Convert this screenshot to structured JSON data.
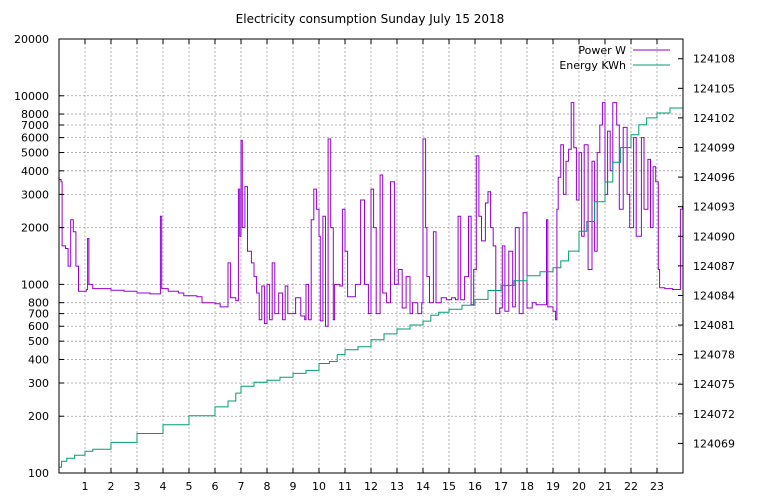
{
  "chart_data": {
    "type": "line",
    "title": "Electricity consumption Sunday July 15 2018",
    "xlabel": "",
    "ylabel": "",
    "y2label": "",
    "grid": true,
    "legend_position": "top-right",
    "x_range": [
      0,
      24
    ],
    "x_ticks": [
      1,
      2,
      3,
      4,
      5,
      6,
      7,
      8,
      9,
      10,
      11,
      12,
      13,
      14,
      15,
      16,
      17,
      18,
      19,
      20,
      21,
      22,
      23
    ],
    "y_scale": "log",
    "ylim": [
      100,
      20000
    ],
    "y_ticks": [
      100,
      200,
      300,
      400,
      500,
      600,
      700,
      800,
      1000,
      2000,
      3000,
      4000,
      5000,
      6000,
      7000,
      8000,
      10000,
      20000
    ],
    "y2lim": [
      124066,
      124110
    ],
    "y2_ticks": [
      124069,
      124072,
      124075,
      124078,
      124081,
      124084,
      124087,
      124090,
      124093,
      124096,
      124099,
      124102,
      124105,
      124108
    ],
    "series": [
      {
        "name": "Power W",
        "axis": "left",
        "color": "#9400d3",
        "points": [
          [
            0.0,
            3600
          ],
          [
            0.08,
            3500
          ],
          [
            0.12,
            1600
          ],
          [
            0.25,
            1550
          ],
          [
            0.35,
            1250
          ],
          [
            0.45,
            2200
          ],
          [
            0.55,
            1900
          ],
          [
            0.65,
            1250
          ],
          [
            0.75,
            920
          ],
          [
            1.05,
            940
          ],
          [
            1.1,
            1750
          ],
          [
            1.15,
            1000
          ],
          [
            1.3,
            950
          ],
          [
            2.0,
            930
          ],
          [
            2.5,
            920
          ],
          [
            3.0,
            900
          ],
          [
            3.5,
            890
          ],
          [
            3.85,
            890
          ],
          [
            3.9,
            2300
          ],
          [
            3.95,
            950
          ],
          [
            4.2,
            920
          ],
          [
            4.6,
            900
          ],
          [
            4.8,
            870
          ],
          [
            5.3,
            860
          ],
          [
            5.5,
            800
          ],
          [
            6.0,
            790
          ],
          [
            6.2,
            760
          ],
          [
            6.45,
            760
          ],
          [
            6.5,
            1300
          ],
          [
            6.6,
            850
          ],
          [
            6.8,
            820
          ],
          [
            6.9,
            3200
          ],
          [
            6.95,
            1800
          ],
          [
            7.0,
            5800
          ],
          [
            7.05,
            2000
          ],
          [
            7.15,
            3300
          ],
          [
            7.25,
            1500
          ],
          [
            7.4,
            1300
          ],
          [
            7.5,
            1100
          ],
          [
            7.6,
            900
          ],
          [
            7.7,
            650
          ],
          [
            7.8,
            980
          ],
          [
            7.9,
            620
          ],
          [
            8.0,
            1000
          ],
          [
            8.1,
            650
          ],
          [
            8.2,
            1300
          ],
          [
            8.3,
            700
          ],
          [
            8.45,
            900
          ],
          [
            8.6,
            650
          ],
          [
            8.7,
            980
          ],
          [
            8.8,
            700
          ],
          [
            9.0,
            700
          ],
          [
            9.1,
            850
          ],
          [
            9.3,
            680
          ],
          [
            9.45,
            650
          ],
          [
            9.5,
            1000
          ],
          [
            9.6,
            650
          ],
          [
            9.7,
            2200
          ],
          [
            9.8,
            3200
          ],
          [
            9.9,
            2500
          ],
          [
            10.0,
            1800
          ],
          [
            10.05,
            640
          ],
          [
            10.15,
            2300
          ],
          [
            10.25,
            600
          ],
          [
            10.35,
            5900
          ],
          [
            10.45,
            2000
          ],
          [
            10.55,
            650
          ],
          [
            10.6,
            1000
          ],
          [
            10.8,
            980
          ],
          [
            10.9,
            2500
          ],
          [
            11.0,
            1500
          ],
          [
            11.1,
            860
          ],
          [
            11.3,
            860
          ],
          [
            11.4,
            1000
          ],
          [
            11.6,
            2800
          ],
          [
            11.75,
            1000
          ],
          [
            11.9,
            700
          ],
          [
            12.0,
            3200
          ],
          [
            12.1,
            2000
          ],
          [
            12.2,
            700
          ],
          [
            12.35,
            3800
          ],
          [
            12.45,
            900
          ],
          [
            12.6,
            800
          ],
          [
            12.75,
            3500
          ],
          [
            12.9,
            1000
          ],
          [
            13.05,
            1200
          ],
          [
            13.2,
            750
          ],
          [
            13.35,
            1100
          ],
          [
            13.5,
            700
          ],
          [
            13.6,
            800
          ],
          [
            13.8,
            700
          ],
          [
            13.95,
            800
          ],
          [
            14.0,
            5900
          ],
          [
            14.1,
            2000
          ],
          [
            14.15,
            1100
          ],
          [
            14.25,
            800
          ],
          [
            14.4,
            1900
          ],
          [
            14.5,
            800
          ],
          [
            14.7,
            850
          ],
          [
            14.9,
            830
          ],
          [
            15.1,
            850
          ],
          [
            15.25,
            830
          ],
          [
            15.35,
            2300
          ],
          [
            15.45,
            830
          ],
          [
            15.6,
            1100
          ],
          [
            15.75,
            2300
          ],
          [
            15.85,
            780
          ],
          [
            15.95,
            1200
          ],
          [
            16.05,
            4800
          ],
          [
            16.15,
            2300
          ],
          [
            16.25,
            1700
          ],
          [
            16.4,
            2700
          ],
          [
            16.5,
            3100
          ],
          [
            16.6,
            2000
          ],
          [
            16.7,
            1600
          ],
          [
            16.8,
            700
          ],
          [
            16.95,
            750
          ],
          [
            17.05,
            1600
          ],
          [
            17.15,
            720
          ],
          [
            17.3,
            1500
          ],
          [
            17.45,
            760
          ],
          [
            17.55,
            2000
          ],
          [
            17.7,
            700
          ],
          [
            17.85,
            2400
          ],
          [
            18.0,
            750
          ],
          [
            18.2,
            800
          ],
          [
            18.35,
            780
          ],
          [
            18.6,
            780
          ],
          [
            18.75,
            2200
          ],
          [
            18.8,
            760
          ],
          [
            19.0,
            720
          ],
          [
            19.1,
            650
          ],
          [
            19.15,
            2500
          ],
          [
            19.2,
            3700
          ],
          [
            19.3,
            5500
          ],
          [
            19.4,
            3000
          ],
          [
            19.5,
            4500
          ],
          [
            19.6,
            5200
          ],
          [
            19.7,
            9200
          ],
          [
            19.8,
            5300
          ],
          [
            19.9,
            2800
          ],
          [
            20.0,
            5000
          ],
          [
            20.1,
            1800
          ],
          [
            20.2,
            5500
          ],
          [
            20.35,
            1200
          ],
          [
            20.5,
            4500
          ],
          [
            20.6,
            1500
          ],
          [
            20.7,
            5000
          ],
          [
            20.8,
            7000
          ],
          [
            20.9,
            9200
          ],
          [
            21.0,
            3000
          ],
          [
            21.1,
            6500
          ],
          [
            21.2,
            4000
          ],
          [
            21.3,
            9200
          ],
          [
            21.45,
            7000
          ],
          [
            21.55,
            2500
          ],
          [
            21.7,
            6800
          ],
          [
            21.85,
            3000
          ],
          [
            21.95,
            2000
          ],
          [
            22.1,
            6000
          ],
          [
            22.2,
            1800
          ],
          [
            22.4,
            6000
          ],
          [
            22.5,
            2500
          ],
          [
            22.65,
            4600
          ],
          [
            22.75,
            2000
          ],
          [
            22.85,
            4200
          ],
          [
            22.95,
            3500
          ],
          [
            23.05,
            1200
          ],
          [
            23.1,
            960
          ],
          [
            23.3,
            950
          ],
          [
            23.6,
            940
          ],
          [
            23.8,
            940
          ],
          [
            23.9,
            2500
          ],
          [
            23.98,
            2600
          ]
        ]
      },
      {
        "name": "Energy KWh",
        "axis": "right",
        "color": "#009e73",
        "points": [
          [
            0.0,
            124066.6
          ],
          [
            0.1,
            124067.2
          ],
          [
            0.3,
            124067.5
          ],
          [
            0.6,
            124067.8
          ],
          [
            1.0,
            124068.2
          ],
          [
            1.3,
            124068.4
          ],
          [
            2.0,
            124069.1
          ],
          [
            3.0,
            124070.0
          ],
          [
            4.0,
            124070.9
          ],
          [
            5.0,
            124071.8
          ],
          [
            6.0,
            124072.7
          ],
          [
            6.5,
            124073.3
          ],
          [
            6.8,
            124074.1
          ],
          [
            7.0,
            124074.8
          ],
          [
            7.5,
            124075.2
          ],
          [
            8.0,
            124075.4
          ],
          [
            8.5,
            124075.7
          ],
          [
            9.0,
            124076.1
          ],
          [
            9.5,
            124076.4
          ],
          [
            10.0,
            124077.1
          ],
          [
            10.4,
            124077.3
          ],
          [
            10.7,
            124078.0
          ],
          [
            11.0,
            124078.5
          ],
          [
            11.5,
            124078.8
          ],
          [
            12.0,
            124079.5
          ],
          [
            12.5,
            124080.1
          ],
          [
            13.0,
            124080.6
          ],
          [
            13.5,
            124081.0
          ],
          [
            14.0,
            124081.4
          ],
          [
            14.3,
            124082.0
          ],
          [
            14.6,
            124082.3
          ],
          [
            15.0,
            124082.6
          ],
          [
            15.5,
            124083.0
          ],
          [
            16.0,
            124083.6
          ],
          [
            16.5,
            124084.5
          ],
          [
            17.0,
            124085.0
          ],
          [
            17.5,
            124085.5
          ],
          [
            18.0,
            124086.0
          ],
          [
            18.5,
            124086.4
          ],
          [
            19.0,
            124086.8
          ],
          [
            19.3,
            124087.5
          ],
          [
            19.6,
            124088.5
          ],
          [
            20.0,
            124090.5
          ],
          [
            20.3,
            124091.5
          ],
          [
            20.6,
            124093.5
          ],
          [
            21.0,
            124095.5
          ],
          [
            21.3,
            124097.5
          ],
          [
            21.6,
            124099.0
          ],
          [
            22.0,
            124100.3
          ],
          [
            22.3,
            124101.3
          ],
          [
            22.6,
            124102.0
          ],
          [
            23.0,
            124102.5
          ],
          [
            23.5,
            124103.0
          ],
          [
            24.0,
            124103.5
          ]
        ]
      }
    ]
  }
}
